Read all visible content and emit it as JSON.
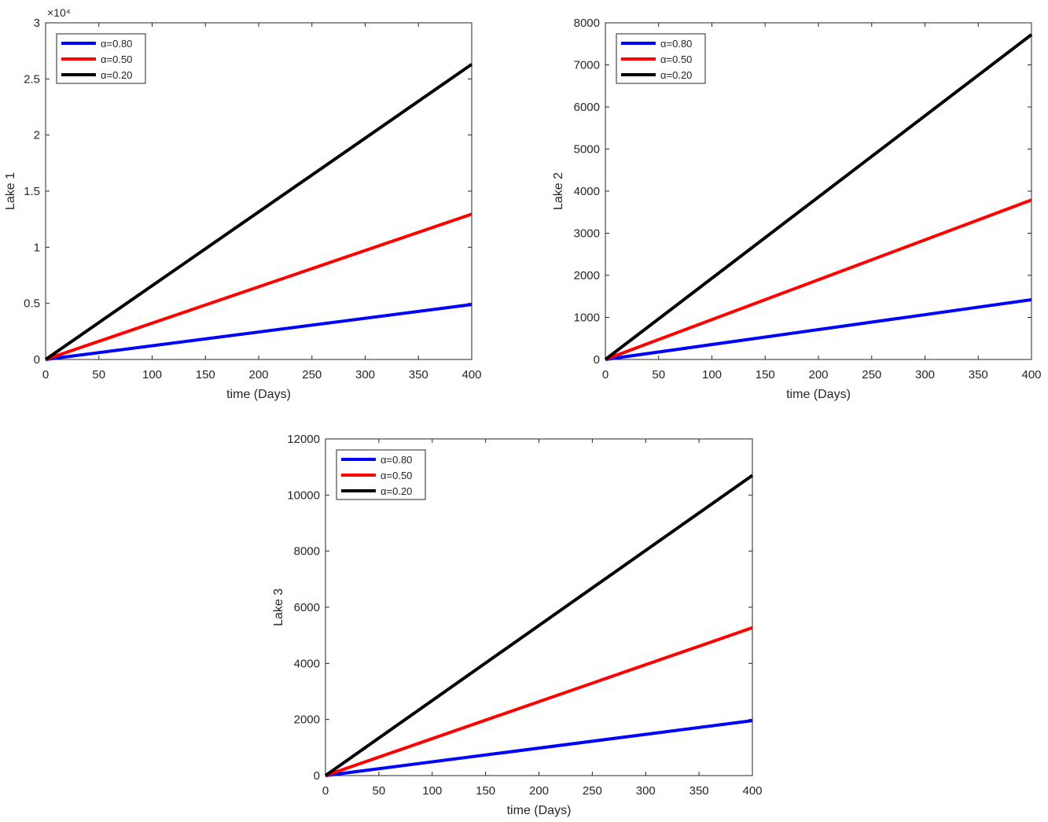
{
  "chart_data": [
    {
      "type": "line",
      "id": "lake1",
      "title": "",
      "xlabel": "time (Days)",
      "ylabel": "Lake 1",
      "xlim": [
        0,
        400
      ],
      "ylim": [
        0,
        30000
      ],
      "xticks": [
        0,
        50,
        100,
        150,
        200,
        250,
        300,
        350,
        400
      ],
      "xtick_labels": [
        "0",
        "50",
        "100",
        "150",
        "200",
        "250",
        "300",
        "350",
        "400"
      ],
      "yticks": [
        0,
        5000,
        10000,
        15000,
        20000,
        25000,
        30000
      ],
      "ytick_labels": [
        "0",
        "0.5",
        "1",
        "1.5",
        "2",
        "2.5",
        "3"
      ],
      "y_multiplier_label": "×10⁴",
      "grid": false,
      "legend_position": "top-left",
      "series": [
        {
          "name": "α=0.80",
          "color": "#0000ff",
          "x": [
            0,
            400
          ],
          "y": [
            0,
            4900
          ]
        },
        {
          "name": "α=0.50",
          "color": "#ff0000",
          "x": [
            0,
            400
          ],
          "y": [
            0,
            12950
          ]
        },
        {
          "name": "α=0.20",
          "color": "#000000",
          "x": [
            0,
            400
          ],
          "y": [
            0,
            26300
          ]
        }
      ]
    },
    {
      "type": "line",
      "id": "lake2",
      "title": "",
      "xlabel": "time (Days)",
      "ylabel": "Lake 2",
      "xlim": [
        0,
        400
      ],
      "ylim": [
        0,
        8000
      ],
      "xticks": [
        0,
        50,
        100,
        150,
        200,
        250,
        300,
        350,
        400
      ],
      "xtick_labels": [
        "0",
        "50",
        "100",
        "150",
        "200",
        "250",
        "300",
        "350",
        "400"
      ],
      "yticks": [
        0,
        1000,
        2000,
        3000,
        4000,
        5000,
        6000,
        7000,
        8000
      ],
      "ytick_labels": [
        "0",
        "1000",
        "2000",
        "3000",
        "4000",
        "5000",
        "6000",
        "7000",
        "8000"
      ],
      "grid": false,
      "legend_position": "top-left",
      "series": [
        {
          "name": "α=0.80",
          "color": "#0000ff",
          "x": [
            0,
            400
          ],
          "y": [
            0,
            1420
          ]
        },
        {
          "name": "α=0.50",
          "color": "#ff0000",
          "x": [
            0,
            400
          ],
          "y": [
            0,
            3790
          ]
        },
        {
          "name": "α=0.20",
          "color": "#000000",
          "x": [
            0,
            400
          ],
          "y": [
            0,
            7720
          ]
        }
      ]
    },
    {
      "type": "line",
      "id": "lake3",
      "title": "",
      "xlabel": "time (Days)",
      "ylabel": "Lake 3",
      "xlim": [
        0,
        400
      ],
      "ylim": [
        0,
        12000
      ],
      "xticks": [
        0,
        50,
        100,
        150,
        200,
        250,
        300,
        350,
        400
      ],
      "xtick_labels": [
        "0",
        "50",
        "100",
        "150",
        "200",
        "250",
        "300",
        "350",
        "400"
      ],
      "yticks": [
        0,
        2000,
        4000,
        6000,
        8000,
        10000,
        12000
      ],
      "ytick_labels": [
        "0",
        "2000",
        "4000",
        "6000",
        "8000",
        "10000",
        "12000"
      ],
      "grid": false,
      "legend_position": "top-left",
      "series": [
        {
          "name": "α=0.80",
          "color": "#0000ff",
          "x": [
            0,
            400
          ],
          "y": [
            0,
            1960
          ]
        },
        {
          "name": "α=0.50",
          "color": "#ff0000",
          "x": [
            0,
            400
          ],
          "y": [
            0,
            5270
          ]
        },
        {
          "name": "α=0.20",
          "color": "#000000",
          "x": [
            0,
            400
          ],
          "y": [
            0,
            10700
          ]
        }
      ]
    }
  ]
}
